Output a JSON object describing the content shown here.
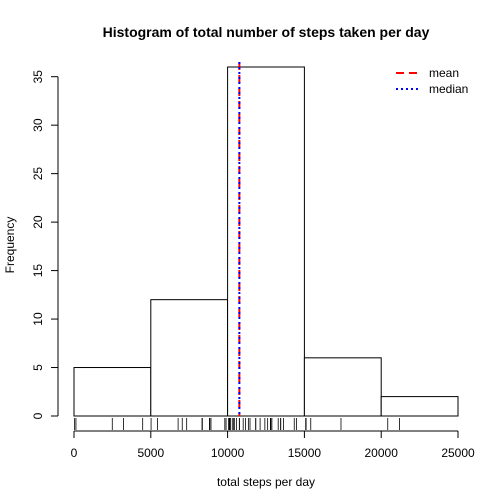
{
  "chart_data": {
    "type": "bar",
    "title": "Histogram of total number of steps taken per day",
    "xlabel": "total steps per day",
    "ylabel": "Frequency",
    "xlim": [
      0,
      25000
    ],
    "ylim": [
      0,
      36
    ],
    "bins": [
      {
        "x0": 0,
        "x1": 5000,
        "count": 5
      },
      {
        "x0": 5000,
        "x1": 10000,
        "count": 12
      },
      {
        "x0": 10000,
        "x1": 15000,
        "count": 36
      },
      {
        "x0": 15000,
        "x1": 20000,
        "count": 6
      },
      {
        "x0": 20000,
        "x1": 25000,
        "count": 2
      }
    ],
    "x_ticks": [
      0,
      5000,
      10000,
      15000,
      20000,
      25000
    ],
    "x_tick_labels": [
      "0",
      "5000",
      "10000",
      "15000",
      "20000",
      "25000"
    ],
    "y_ticks": [
      0,
      5,
      10,
      15,
      20,
      25,
      30,
      35
    ],
    "y_tick_labels": [
      "0",
      "5",
      "10",
      "15",
      "20",
      "25",
      "30",
      "35"
    ],
    "mean": 10766,
    "median": 10766,
    "rug": [
      41,
      126,
      2492,
      3219,
      4472,
      5018,
      5441,
      6778,
      7047,
      7336,
      8334,
      8355,
      8821,
      8841,
      8918,
      9819,
      9900,
      10056,
      10119,
      10139,
      10183,
      10304,
      10395,
      10439,
      10571,
      10765,
      10766,
      11015,
      11162,
      11352,
      11458,
      11829,
      11834,
      12116,
      12426,
      12608,
      12787,
      12811,
      12883,
      13294,
      13452,
      13460,
      13646,
      14339,
      14478,
      15084,
      15098,
      15110,
      15414,
      17382,
      20427,
      21194
    ],
    "legend": {
      "position": "top-right",
      "entries": [
        {
          "label": "mean",
          "color": "#ff0000",
          "style": "dashed"
        },
        {
          "label": "median",
          "color": "#0000ff",
          "style": "dotted"
        }
      ]
    }
  }
}
